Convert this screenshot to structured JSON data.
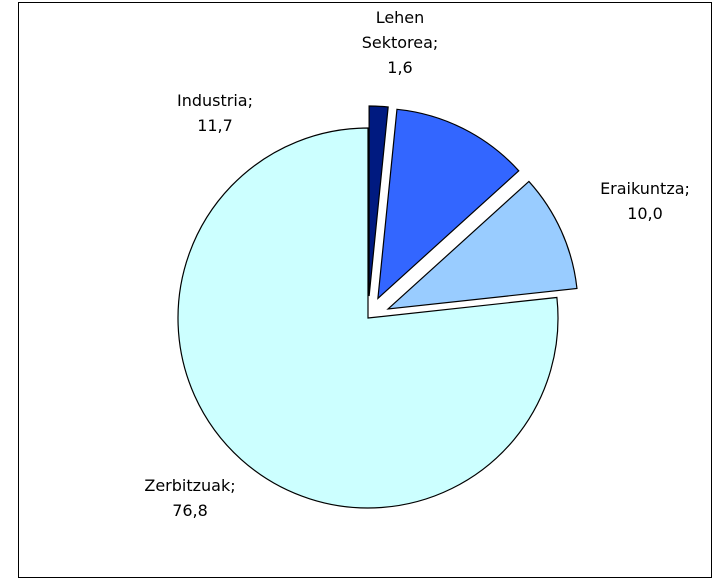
{
  "chart_data": {
    "type": "pie",
    "categories": [
      "Lehen Sektorea;",
      "Industria;",
      "Eraikuntza;",
      "Zerbitzuak;"
    ],
    "values": [
      1.6,
      11.7,
      10.0,
      76.8
    ],
    "value_labels": [
      "1,6",
      "11,7",
      "10,0",
      "76,8"
    ],
    "colors": [
      "#001a80",
      "#3366ff",
      "#99ccff",
      "#ccffff"
    ],
    "exploded": [
      true,
      true,
      true,
      false
    ]
  }
}
